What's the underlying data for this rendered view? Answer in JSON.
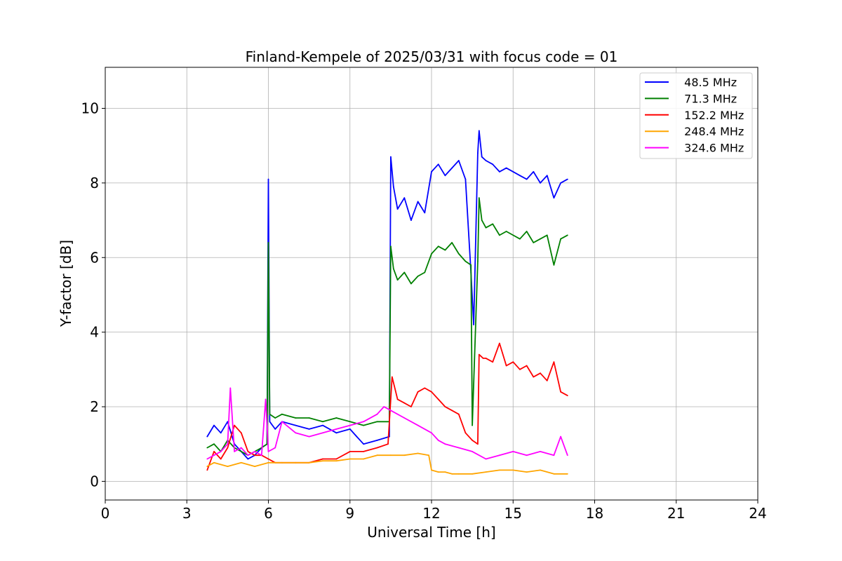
{
  "chart_data": {
    "type": "line",
    "title": "Finland-Kempele of 2025/03/31 with focus code = 01",
    "xlabel": "Universal Time [h]",
    "ylabel": "Y-factor [dB]",
    "xlim": [
      0,
      24
    ],
    "ylim": [
      -0.5,
      11.1
    ],
    "xticks": [
      0,
      3,
      6,
      9,
      12,
      15,
      18,
      21,
      24
    ],
    "yticks": [
      0,
      2,
      4,
      6,
      8,
      10
    ],
    "xtick_labels": [
      "0",
      "3",
      "6",
      "9",
      "12",
      "15",
      "18",
      "21",
      "24"
    ],
    "ytick_labels": [
      "0",
      "2",
      "4",
      "6",
      "8",
      "10"
    ],
    "grid": true,
    "legend_position": "top-right",
    "series": [
      {
        "name": "  48.5 MHz",
        "color": "#0000ff",
        "x": [
          3.75,
          4.0,
          4.25,
          4.5,
          4.75,
          5.0,
          5.25,
          5.5,
          5.75,
          5.95,
          6.0,
          6.05,
          6.25,
          6.5,
          7.0,
          7.5,
          8.0,
          8.5,
          9.0,
          9.25,
          9.5,
          10.0,
          10.45,
          10.5,
          10.6,
          10.75,
          11.0,
          11.25,
          11.5,
          11.75,
          12.0,
          12.25,
          12.5,
          12.75,
          13.0,
          13.25,
          13.45,
          13.55,
          13.7,
          13.75,
          13.85,
          14.0,
          14.25,
          14.5,
          14.75,
          15.0,
          15.25,
          15.5,
          15.75,
          16.0,
          16.25,
          16.5,
          16.75,
          17.0
        ],
        "values": [
          1.2,
          1.5,
          1.3,
          1.6,
          1.0,
          0.8,
          0.6,
          0.7,
          0.9,
          1.0,
          8.1,
          1.6,
          1.4,
          1.6,
          1.5,
          1.4,
          1.5,
          1.3,
          1.4,
          1.2,
          1.0,
          1.1,
          1.2,
          8.7,
          7.9,
          7.3,
          7.6,
          7.0,
          7.5,
          7.2,
          8.3,
          8.5,
          8.2,
          8.4,
          8.6,
          8.1,
          5.6,
          4.2,
          8.8,
          9.4,
          8.7,
          8.6,
          8.5,
          8.3,
          8.4,
          8.3,
          8.2,
          8.1,
          8.3,
          8.0,
          8.2,
          7.6,
          8.0,
          8.1
        ]
      },
      {
        "name": "  71.3 MHz",
        "color": "#008000",
        "x": [
          3.75,
          4.0,
          4.25,
          4.5,
          4.75,
          5.0,
          5.25,
          5.5,
          5.75,
          5.95,
          6.0,
          6.05,
          6.25,
          6.5,
          7.0,
          7.5,
          8.0,
          8.5,
          9.0,
          9.5,
          10.0,
          10.45,
          10.5,
          10.6,
          10.75,
          11.0,
          11.25,
          11.5,
          11.75,
          12.0,
          12.25,
          12.5,
          12.75,
          13.0,
          13.25,
          13.45,
          13.5,
          13.7,
          13.75,
          13.85,
          14.0,
          14.25,
          14.5,
          14.75,
          15.0,
          15.25,
          15.5,
          15.75,
          16.0,
          16.25,
          16.5,
          16.75,
          17.0
        ],
        "values": [
          0.9,
          1.0,
          0.8,
          1.1,
          0.9,
          0.8,
          0.7,
          0.8,
          0.9,
          1.0,
          6.4,
          1.8,
          1.7,
          1.8,
          1.7,
          1.7,
          1.6,
          1.7,
          1.6,
          1.5,
          1.6,
          1.6,
          6.3,
          5.7,
          5.4,
          5.6,
          5.3,
          5.5,
          5.6,
          6.1,
          6.3,
          6.2,
          6.4,
          6.1,
          5.9,
          5.8,
          1.5,
          5.9,
          7.6,
          7.0,
          6.8,
          6.9,
          6.6,
          6.7,
          6.6,
          6.5,
          6.7,
          6.4,
          6.5,
          6.6,
          5.8,
          6.5,
          6.6
        ]
      },
      {
        "name": "  152.2 MHz",
        "color": "#ff0000",
        "x": [
          3.75,
          4.0,
          4.25,
          4.5,
          4.75,
          5.0,
          5.25,
          5.5,
          5.75,
          6.0,
          6.25,
          6.5,
          7.0,
          7.5,
          8.0,
          8.5,
          9.0,
          9.5,
          10.0,
          10.4,
          10.55,
          10.75,
          11.0,
          11.25,
          11.5,
          11.75,
          12.0,
          12.25,
          12.5,
          12.75,
          13.0,
          13.25,
          13.5,
          13.7,
          13.75,
          13.9,
          14.0,
          14.25,
          14.5,
          14.75,
          15.0,
          15.25,
          15.5,
          15.75,
          16.0,
          16.25,
          16.5,
          16.75,
          17.0
        ],
        "values": [
          0.3,
          0.8,
          0.6,
          0.9,
          1.5,
          1.3,
          0.8,
          0.7,
          0.7,
          0.6,
          0.5,
          0.5,
          0.5,
          0.5,
          0.6,
          0.6,
          0.8,
          0.8,
          0.9,
          1.0,
          2.8,
          2.2,
          2.1,
          2.0,
          2.4,
          2.5,
          2.4,
          2.2,
          2.0,
          1.9,
          1.8,
          1.3,
          1.1,
          1.0,
          3.4,
          3.3,
          3.3,
          3.2,
          3.7,
          3.1,
          3.2,
          3.0,
          3.1,
          2.8,
          2.9,
          2.7,
          3.2,
          2.4,
          2.3
        ]
      },
      {
        "name": "  248.4 MHz",
        "color": "#ffa500",
        "x": [
          3.75,
          4.0,
          4.5,
          5.0,
          5.5,
          6.0,
          6.5,
          7.0,
          7.5,
          8.0,
          8.5,
          9.0,
          9.5,
          10.0,
          10.5,
          11.0,
          11.5,
          11.9,
          12.0,
          12.25,
          12.5,
          12.75,
          13.0,
          13.5,
          14.0,
          14.5,
          15.0,
          15.5,
          16.0,
          16.5,
          17.0
        ],
        "values": [
          0.4,
          0.5,
          0.4,
          0.5,
          0.4,
          0.5,
          0.5,
          0.5,
          0.5,
          0.55,
          0.55,
          0.6,
          0.6,
          0.7,
          0.7,
          0.7,
          0.75,
          0.7,
          0.3,
          0.25,
          0.25,
          0.2,
          0.2,
          0.2,
          0.25,
          0.3,
          0.3,
          0.25,
          0.3,
          0.2,
          0.2
        ]
      },
      {
        "name": "  324.6 MHz",
        "color": "#ff00ff",
        "x": [
          3.75,
          4.0,
          4.25,
          4.5,
          4.6,
          4.75,
          5.0,
          5.25,
          5.5,
          5.75,
          5.9,
          6.0,
          6.25,
          6.5,
          7.0,
          7.5,
          8.0,
          8.5,
          9.0,
          9.5,
          10.0,
          10.25,
          10.5,
          11.0,
          11.5,
          12.0,
          12.25,
          12.5,
          13.0,
          13.5,
          14.0,
          14.5,
          15.0,
          15.5,
          16.0,
          16.5,
          16.75,
          17.0
        ],
        "values": [
          0.6,
          0.7,
          0.8,
          1.0,
          2.5,
          0.8,
          0.9,
          0.7,
          0.8,
          0.7,
          2.2,
          0.8,
          0.9,
          1.6,
          1.3,
          1.2,
          1.3,
          1.4,
          1.5,
          1.6,
          1.8,
          2.0,
          1.9,
          1.7,
          1.5,
          1.3,
          1.1,
          1.0,
          0.9,
          0.8,
          0.6,
          0.7,
          0.8,
          0.7,
          0.8,
          0.7,
          1.2,
          0.7
        ]
      }
    ]
  }
}
